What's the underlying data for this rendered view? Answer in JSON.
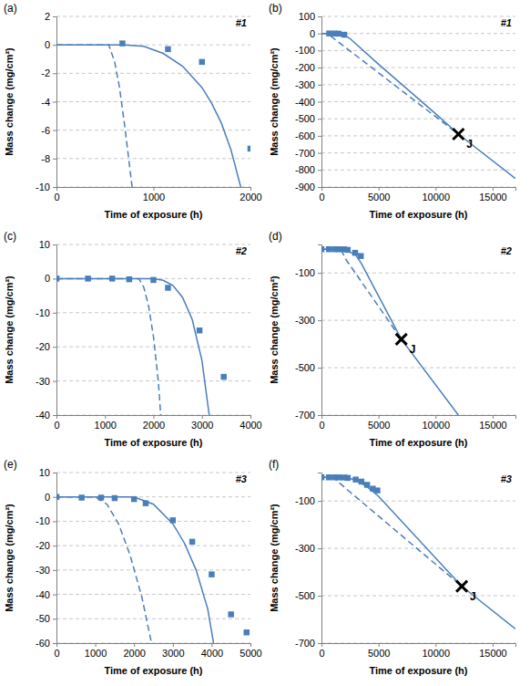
{
  "chart_data": [
    {
      "type": "line",
      "title": "(a)",
      "x_label": "Time of exposure (h)",
      "y_label": "Mass change (mg/cm²)",
      "xlim": [
        0,
        2000
      ],
      "xticks": [
        0,
        1000,
        2000
      ],
      "ylim": [
        -10,
        2
      ],
      "yticks": [
        -10,
        -8,
        -6,
        -4,
        -2,
        0,
        2
      ],
      "grid": true,
      "annotations": [
        {
          "text": "#1"
        }
      ],
      "series": [
        {
          "type": "scatter",
          "marker": "square",
          "color": "#4a7ebb",
          "x": [
            680,
            1150,
            1500,
            2000
          ],
          "values": [
            0.1,
            -0.3,
            -1.2,
            -7.3
          ]
        },
        {
          "type": "line",
          "line_style": "solid",
          "color": "#4a7ebb",
          "x": [
            0,
            700,
            900,
            1100,
            1300,
            1500,
            1600,
            1700,
            1800,
            1900
          ],
          "values": [
            0,
            0,
            -0.1,
            -0.6,
            -1.5,
            -3.0,
            -4.1,
            -5.5,
            -7.4,
            -10
          ]
        },
        {
          "type": "line",
          "line_style": "dashed",
          "color": "#4a7ebb",
          "x": [
            0,
            540,
            600,
            650,
            700,
            750,
            780
          ],
          "values": [
            0,
            0,
            -1.2,
            -3,
            -5.5,
            -8.3,
            -10
          ]
        }
      ]
    },
    {
      "type": "line",
      "title": "(b)",
      "x_label": "Time of exposure (h)",
      "y_label": "Mass change (mg/cm²)",
      "xlim": [
        0,
        17000
      ],
      "xticks": [
        0,
        5000,
        10000,
        15000
      ],
      "ylim": [
        -900,
        100
      ],
      "yticks": [
        -900,
        -800,
        -700,
        -600,
        -500,
        -400,
        -300,
        -200,
        -100,
        0,
        100
      ],
      "grid": true,
      "annotations": [
        {
          "text": "#1"
        },
        {
          "text": "J",
          "x": 12000,
          "y": -590,
          "marker": "x"
        }
      ],
      "series": [
        {
          "type": "scatter",
          "marker": "square",
          "color": "#4a7ebb",
          "x": [
            680,
            1150,
            1500,
            2000
          ],
          "values": [
            0.1,
            -0.3,
            -1.2,
            -7.3
          ]
        },
        {
          "type": "line",
          "line_style": "solid",
          "color": "#4a7ebb",
          "x": [
            0,
            700,
            1500,
            2000,
            2500,
            5000,
            10000,
            12000,
            17000
          ],
          "values": [
            0,
            0,
            -3,
            -8,
            -30,
            -180,
            -470,
            -590,
            -850
          ]
        },
        {
          "type": "line",
          "line_style": "dashed",
          "color": "#4a7ebb",
          "x": [
            0,
            550,
            800,
            12000
          ],
          "values": [
            0,
            0,
            -15,
            -590
          ]
        }
      ]
    },
    {
      "type": "line",
      "title": "(c)",
      "x_label": "Time of exposure (h)",
      "y_label": "Mass change (mg/cm²)",
      "xlim": [
        0,
        4000
      ],
      "xticks": [
        0,
        1000,
        2000,
        3000,
        4000
      ],
      "ylim": [
        -40,
        10
      ],
      "yticks": [
        -40,
        -30,
        -20,
        -10,
        0,
        10
      ],
      "grid": true,
      "annotations": [
        {
          "text": "#2"
        }
      ],
      "series": [
        {
          "type": "scatter",
          "marker": "square",
          "color": "#4a7ebb",
          "x": [
            0,
            650,
            1150,
            1500,
            2000,
            2300,
            2950,
            3450
          ],
          "values": [
            0,
            0,
            0,
            -0.2,
            -0.4,
            -2.7,
            -15.2,
            -28.8
          ]
        },
        {
          "type": "line",
          "line_style": "solid",
          "color": "#4a7ebb",
          "x": [
            0,
            2000,
            2200,
            2400,
            2600,
            2800,
            3000,
            3150
          ],
          "values": [
            0,
            0,
            -0.5,
            -2,
            -5.5,
            -12,
            -24,
            -40
          ]
        },
        {
          "type": "line",
          "line_style": "dashed",
          "color": "#4a7ebb",
          "x": [
            0,
            1700,
            1800,
            1900,
            2000,
            2100,
            2150
          ],
          "values": [
            0,
            0,
            -2.5,
            -8,
            -17,
            -30,
            -40
          ]
        }
      ]
    },
    {
      "type": "line",
      "title": "(d)",
      "x_label": "Time of exposure (h)",
      "y_label": "Mass change (mg/cm²)",
      "xlim": [
        0,
        17000
      ],
      "xticks": [
        0,
        5000,
        10000,
        15000
      ],
      "ylim": [
        -700,
        20
      ],
      "yticks": [
        -700,
        -500,
        -300,
        -100
      ],
      "grid": true,
      "annotations": [
        {
          "text": "#2"
        },
        {
          "text": "J",
          "x": 7000,
          "y": -380,
          "marker": "x"
        }
      ],
      "series": [
        {
          "type": "scatter",
          "marker": "square",
          "color": "#4a7ebb",
          "x": [
            0,
            650,
            1150,
            1500,
            2000,
            2300,
            2950,
            3450
          ],
          "values": [
            0,
            0,
            0,
            -0.2,
            -0.4,
            -2.7,
            -15.2,
            -28.8
          ]
        },
        {
          "type": "line",
          "line_style": "solid",
          "color": "#4a7ebb",
          "x": [
            0,
            2000,
            3000,
            3500,
            7000,
            12000
          ],
          "values": [
            0,
            0,
            -25,
            -60,
            -380,
            -700
          ]
        },
        {
          "type": "line",
          "line_style": "dashed",
          "color": "#4a7ebb",
          "x": [
            0,
            1700,
            2100,
            7000
          ],
          "values": [
            0,
            0,
            -40,
            -380
          ]
        }
      ]
    },
    {
      "type": "line",
      "title": "(e)",
      "x_label": "Time of exposure (h)",
      "y_label": "Mass change (mg/cm²)",
      "xlim": [
        0,
        5000
      ],
      "xticks": [
        0,
        1000,
        2000,
        3000,
        4000,
        5000
      ],
      "ylim": [
        -60,
        10
      ],
      "yticks": [
        -60,
        -50,
        -40,
        -30,
        -20,
        -10,
        0,
        10
      ],
      "grid": true,
      "annotations": [
        {
          "text": "#3"
        }
      ],
      "series": [
        {
          "type": "scatter",
          "marker": "square",
          "color": "#4a7ebb",
          "x": [
            0,
            650,
            1150,
            1500,
            2000,
            2300,
            3000,
            3500,
            4000,
            4500,
            4900
          ],
          "values": [
            0,
            -0.3,
            -0.3,
            -0.5,
            -0.9,
            -2.6,
            -9.6,
            -18.4,
            -31.8,
            -48.2,
            -55.6
          ]
        },
        {
          "type": "line",
          "line_style": "solid",
          "color": "#4a7ebb",
          "x": [
            0,
            2000,
            2500,
            3000,
            3300,
            3600,
            3900,
            4050
          ],
          "values": [
            0,
            0,
            -3,
            -11,
            -19,
            -30,
            -46,
            -60
          ]
        },
        {
          "type": "line",
          "line_style": "dashed",
          "color": "#4a7ebb",
          "x": [
            0,
            1000,
            1300,
            1600,
            1900,
            2200,
            2450
          ],
          "values": [
            0,
            0,
            -3,
            -11,
            -24,
            -41,
            -60
          ]
        }
      ]
    },
    {
      "type": "line",
      "title": "(f)",
      "x_label": "Time of exposure (h)",
      "y_label": "Mass change (mg/cm²)",
      "xlim": [
        0,
        17000
      ],
      "xticks": [
        0,
        5000,
        10000,
        15000
      ],
      "ylim": [
        -700,
        20
      ],
      "yticks": [
        -700,
        -500,
        -300,
        -100
      ],
      "grid": true,
      "annotations": [
        {
          "text": "#3"
        },
        {
          "text": "J",
          "x": 12300,
          "y": -460,
          "marker": "x"
        }
      ],
      "series": [
        {
          "type": "scatter",
          "marker": "square",
          "color": "#4a7ebb",
          "x": [
            0,
            650,
            1150,
            1500,
            2000,
            2300,
            3000,
            3500,
            4000,
            4500,
            4900
          ],
          "values": [
            0,
            -0.3,
            -0.3,
            -0.5,
            -0.9,
            -2.6,
            -9.6,
            -18.4,
            -31.8,
            -48.2,
            -55.6
          ]
        },
        {
          "type": "line",
          "line_style": "solid",
          "color": "#4a7ebb",
          "x": [
            0,
            2000,
            3000,
            4000,
            5000,
            12300,
            17000
          ],
          "values": [
            0,
            0,
            -11,
            -40,
            -80,
            -460,
            -640
          ]
        },
        {
          "type": "line",
          "line_style": "dashed",
          "color": "#4a7ebb",
          "x": [
            0,
            1000,
            2450,
            12300
          ],
          "values": [
            0,
            0,
            -60,
            -460
          ]
        }
      ]
    }
  ]
}
